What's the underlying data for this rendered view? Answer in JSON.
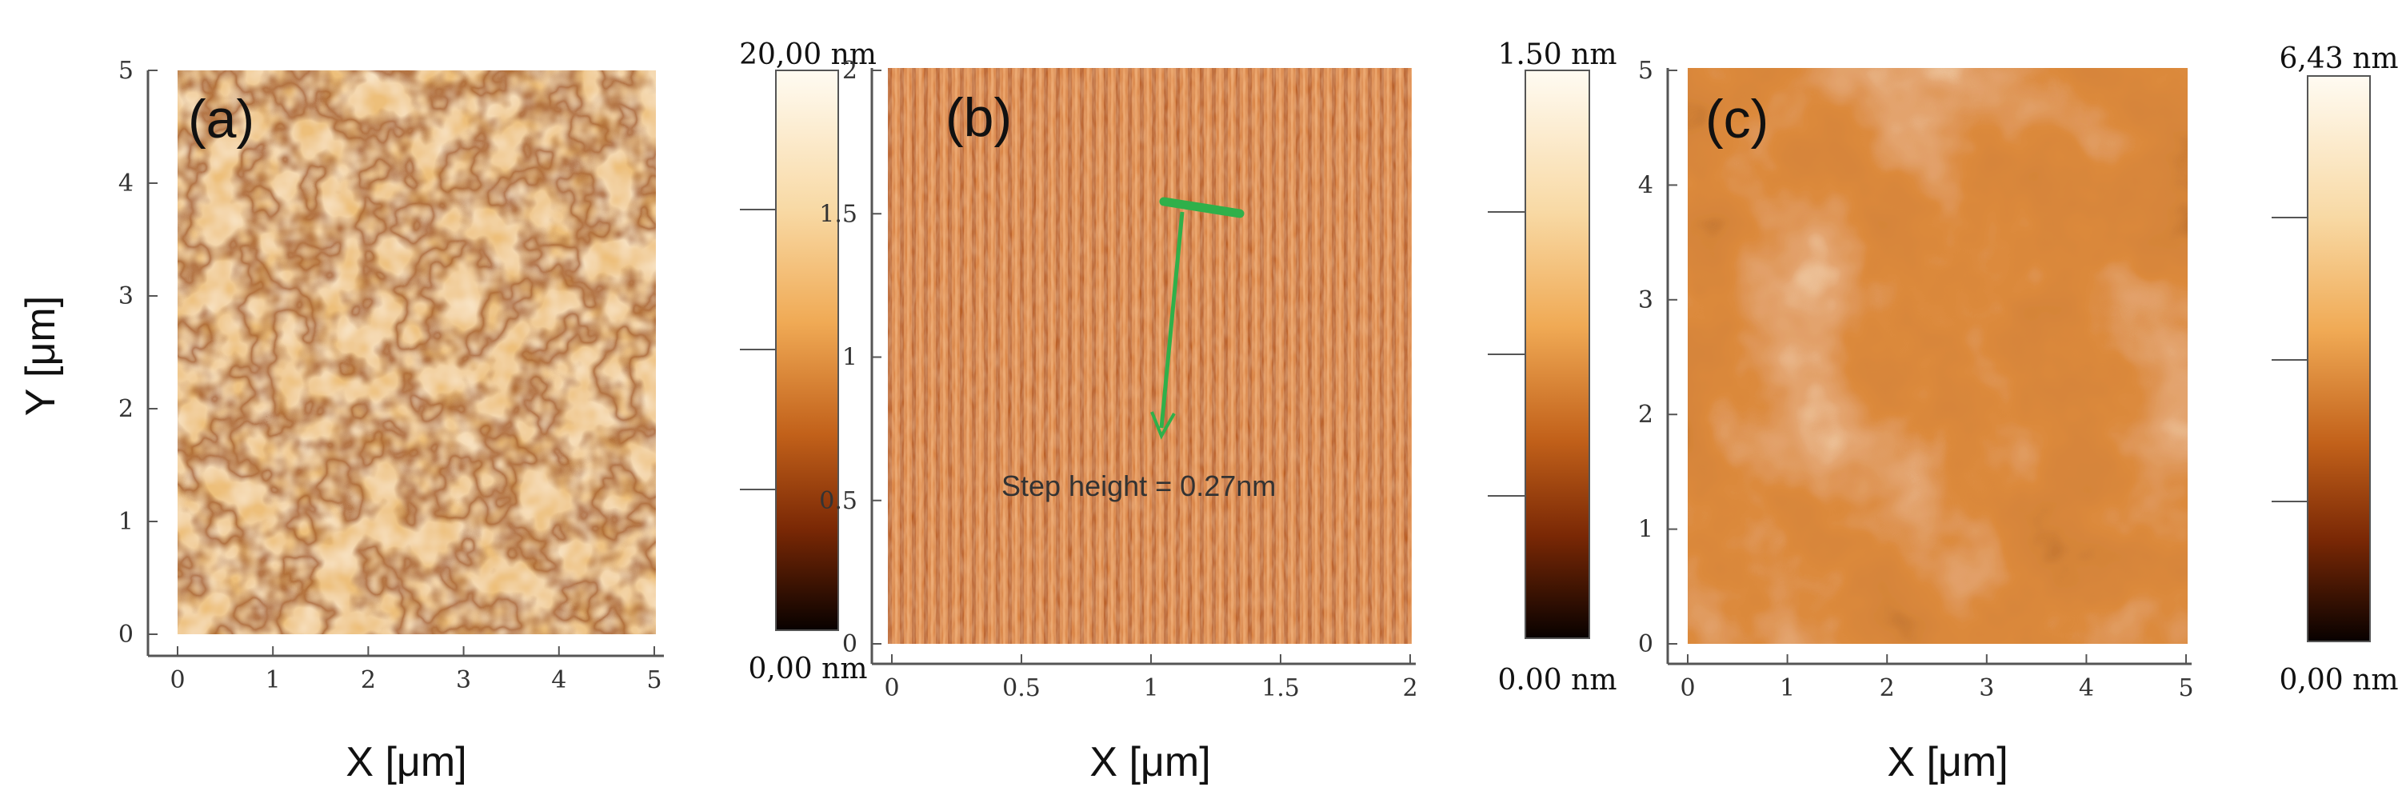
{
  "y_axis_label": "Y [μm]",
  "panels": [
    {
      "label": "(a)",
      "x_axis_label": "X [μm]",
      "x_ticks": [
        "0",
        "1",
        "2",
        "3",
        "4",
        "5"
      ],
      "y_ticks": [
        "0",
        "1",
        "2",
        "3",
        "4",
        "5"
      ],
      "x_range": [
        0,
        5
      ],
      "y_range": [
        0,
        5
      ],
      "colorbar": {
        "max_label": "20,00 nm",
        "min_label": "0,00 nm"
      },
      "texture": "domains"
    },
    {
      "label": "(b)",
      "x_axis_label": "X [μm]",
      "x_ticks": [
        "0",
        "0.5",
        "1",
        "1.5",
        "2"
      ],
      "y_ticks": [
        "0",
        "0.5",
        "1",
        "1.5",
        "2"
      ],
      "x_range": [
        0,
        2
      ],
      "y_range": [
        0,
        2
      ],
      "colorbar": {
        "max_label": "1.50 nm",
        "min_label": "0.00 nm"
      },
      "annotation": "Step height = 0.27nm",
      "texture": "steps"
    },
    {
      "label": "(c)",
      "x_axis_label": "X [μm]",
      "x_ticks": [
        "0",
        "1",
        "2",
        "3",
        "4",
        "5"
      ],
      "y_ticks": [
        "0",
        "1",
        "2",
        "3",
        "4",
        "5"
      ],
      "x_range": [
        0,
        5
      ],
      "y_range": [
        0,
        5
      ],
      "colorbar": {
        "max_label": "6,43 nm",
        "min_label": "0,00 nm"
      },
      "texture": "grains"
    }
  ],
  "colors": {
    "axis": "#555555",
    "text": "#111111",
    "arrow": "#2fb04a",
    "colorbar_top": "#fffbf2",
    "colorbar_mid": "#f5a84a",
    "colorbar_low": "#8a2c05",
    "colorbar_bottom": "#050000"
  }
}
